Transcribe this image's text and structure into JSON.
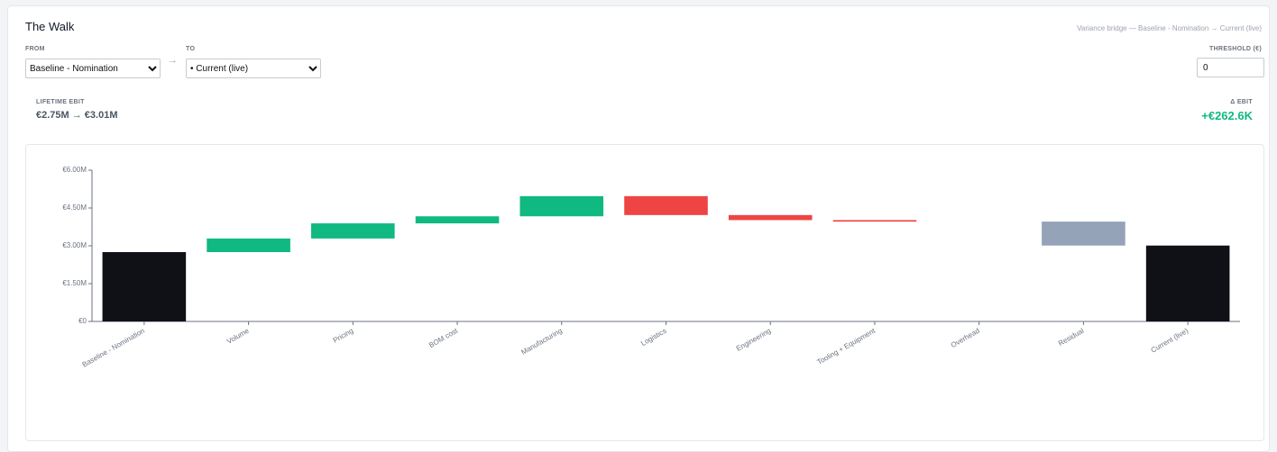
{
  "header": {
    "title": "The Walk",
    "subtitle": "Variance bridge — Baseline - Nomination → Current (live)"
  },
  "controls": {
    "from_label": "FROM",
    "from_value": "Baseline - Nomination",
    "arrow": "→",
    "to_label": "TO",
    "to_value": "• Current (live)",
    "threshold_label": "THRESHOLD (€)",
    "threshold_value": "0"
  },
  "summary": {
    "lifetime_label": "LIFETIME EBIT",
    "lifetime_value": "€2.75M → €3.01M",
    "delta_label": "Δ EBIT",
    "delta_value": "+€262.6K"
  },
  "chart_data": {
    "type": "waterfall",
    "categories": [
      "Baseline - Nomination",
      "Volume",
      "Pricing",
      "BOM cost",
      "Manufacturing",
      "Logistics",
      "Engineering",
      "Tooling + Equipment",
      "Overhead",
      "Residual",
      "Current (live)"
    ],
    "values": [
      2.75,
      0.54,
      0.6,
      0.28,
      0.8,
      -0.75,
      -0.2,
      -0.06,
      0,
      -0.95,
      3.01
    ],
    "is_total": [
      true,
      false,
      false,
      false,
      false,
      false,
      false,
      false,
      false,
      false,
      true
    ],
    "colors": [
      "#0f1117",
      "#10b981",
      "#10b981",
      "#10b981",
      "#10b981",
      "#ef4444",
      "#ef4444",
      "#ef4444",
      "#ef4444",
      "#94a3b8",
      "#0f1117"
    ],
    "ylim": [
      0,
      6
    ],
    "yticks": [
      {
        "value": 0,
        "label": "€0"
      },
      {
        "value": 1.5,
        "label": "€1.50M"
      },
      {
        "value": 3,
        "label": "€3.00M"
      },
      {
        "value": 4.5,
        "label": "€4.50M"
      },
      {
        "value": 6,
        "label": "€6.00M"
      }
    ]
  }
}
